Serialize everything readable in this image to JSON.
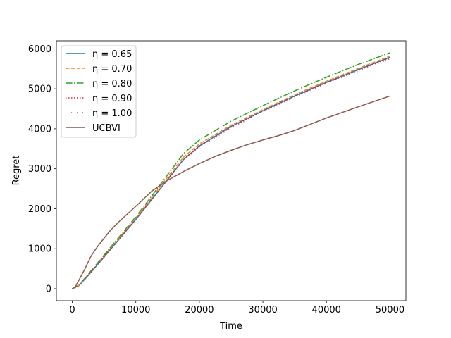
{
  "chart_data": {
    "type": "line",
    "title": "",
    "xlabel": "Time",
    "ylabel": "Regret",
    "xlim": [
      -2500,
      52500
    ],
    "ylim": [
      -300,
      6200
    ],
    "xticks": [
      0,
      10000,
      20000,
      30000,
      40000,
      50000
    ],
    "yticks": [
      0,
      1000,
      2000,
      3000,
      4000,
      5000,
      6000
    ],
    "xtick_labels": [
      "0",
      "10000",
      "20000",
      "30000",
      "40000",
      "50000"
    ],
    "ytick_labels": [
      "0",
      "1000",
      "2000",
      "3000",
      "4000",
      "5000",
      "6000"
    ],
    "grid": false,
    "legend_position": "upper-left",
    "series": [
      {
        "name": "η = 0.65",
        "color": "#1f77b4",
        "style": "solid",
        "x": [
          0,
          1000,
          2500,
          5000,
          7500,
          10000,
          12500,
          15000,
          17500,
          20000,
          25000,
          30000,
          35000,
          40000,
          45000,
          50000
        ],
        "y": [
          0,
          70,
          330,
          790,
          1260,
          1730,
          2230,
          2730,
          3230,
          3570,
          4060,
          4450,
          4820,
          5160,
          5480,
          5790
        ]
      },
      {
        "name": "η = 0.70",
        "color": "#ff7f0e",
        "style": "dashed",
        "x": [
          0,
          1000,
          2500,
          5000,
          7500,
          10000,
          12500,
          15000,
          17500,
          20000,
          25000,
          30000,
          35000,
          40000,
          45000,
          50000
        ],
        "y": [
          0,
          80,
          350,
          820,
          1290,
          1770,
          2280,
          2790,
          3290,
          3620,
          4090,
          4480,
          4850,
          5190,
          5510,
          5820
        ]
      },
      {
        "name": "η = 0.80",
        "color": "#2ca02c",
        "style": "dashdot",
        "x": [
          0,
          1000,
          2500,
          5000,
          7500,
          10000,
          12500,
          15000,
          17500,
          20000,
          25000,
          30000,
          35000,
          40000,
          45000,
          50000
        ],
        "y": [
          0,
          80,
          360,
          840,
          1320,
          1800,
          2320,
          2850,
          3380,
          3720,
          4190,
          4580,
          4950,
          5290,
          5610,
          5900
        ]
      },
      {
        "name": "η = 0.90",
        "color": "#d62728",
        "style": "dotted",
        "x": [
          0,
          1000,
          2500,
          5000,
          7500,
          10000,
          12500,
          15000,
          17500,
          20000,
          25000,
          30000,
          35000,
          40000,
          45000,
          50000
        ],
        "y": [
          0,
          70,
          340,
          800,
          1270,
          1740,
          2240,
          2740,
          3230,
          3560,
          4040,
          4440,
          4810,
          5150,
          5460,
          5770
        ]
      },
      {
        "name": "η = 1.00",
        "color": "#9467bd",
        "style": "loosedot",
        "x": [
          0,
          1000,
          2500,
          5000,
          7500,
          10000,
          12500,
          15000,
          17500,
          20000,
          25000,
          30000,
          35000,
          40000,
          45000,
          50000
        ],
        "y": [
          0,
          60,
          320,
          780,
          1250,
          1720,
          2220,
          2720,
          3210,
          3540,
          4020,
          4420,
          4790,
          5130,
          5440,
          5750
        ]
      },
      {
        "name": "UCBVI",
        "color": "#8c564b",
        "style": "solid",
        "x": [
          0,
          500,
          1000,
          2000,
          3000,
          4000,
          5000,
          6000,
          7500,
          10000,
          12500,
          15000,
          17500,
          20000,
          22500,
          25000,
          27500,
          30000,
          32500,
          35000,
          40000,
          45000,
          50000
        ],
        "y": [
          0,
          50,
          200,
          500,
          830,
          1060,
          1260,
          1460,
          1700,
          2060,
          2440,
          2710,
          2930,
          3130,
          3310,
          3460,
          3600,
          3720,
          3830,
          3960,
          4270,
          4550,
          4820
        ]
      }
    ]
  }
}
